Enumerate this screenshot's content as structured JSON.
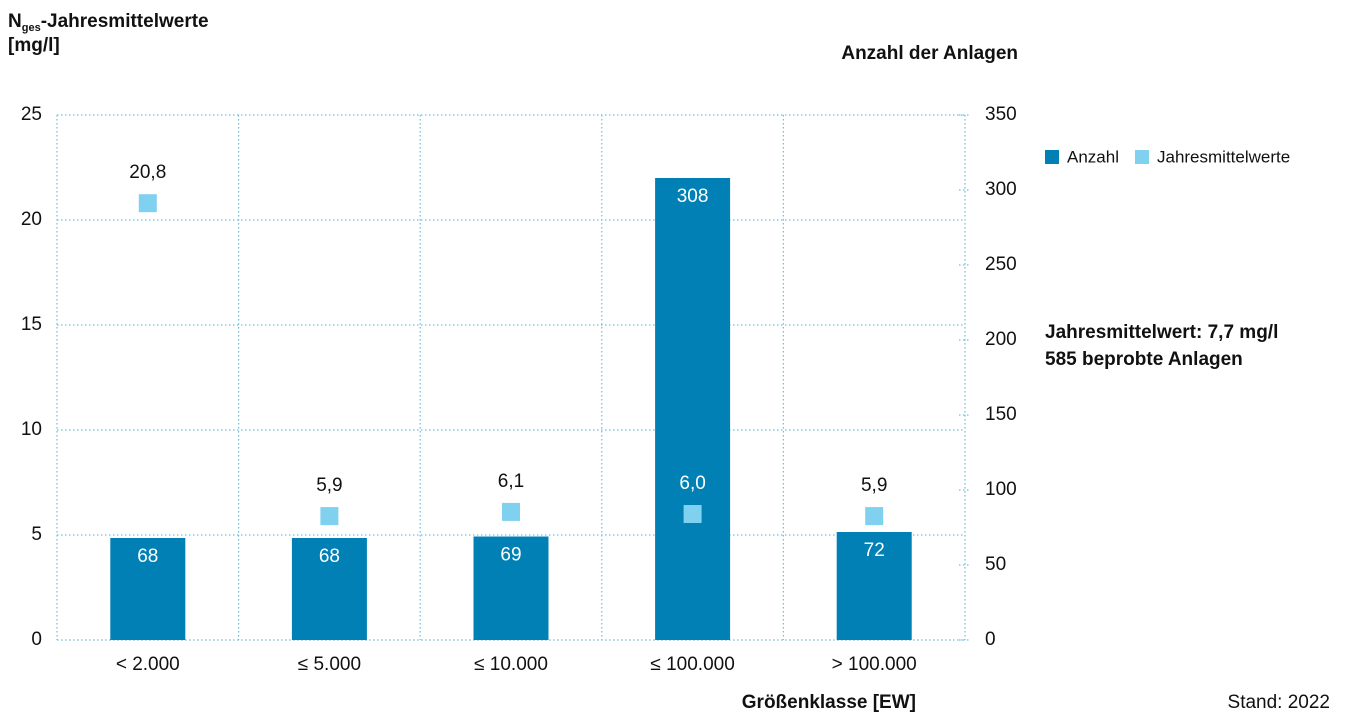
{
  "chart_data": {
    "type": "bar",
    "ylabel": {
      "main": "N",
      "sub": "ges",
      "rest": "-Jahresmittelwerte",
      "unit": "[mg/l]"
    },
    "y2label": "Anzahl der Anlagen",
    "xlabel": "Größenklasse [EW]",
    "annotations": [
      "Jahresmittelwert: 7,7 mg/l",
      "585 beprobte Anlagen"
    ],
    "source": "Stand: 2022",
    "categories": [
      "< 2.000",
      "≤ 5.000",
      "≤ 10.000",
      "≤ 100.000",
      "> 100.000"
    ],
    "series": [
      {
        "name": "Anzahl",
        "type": "bar",
        "color": "#0080b4",
        "axis": "y2",
        "values": [
          68,
          68,
          69,
          308,
          72
        ]
      },
      {
        "name": "Jahresmittelwerte",
        "type": "scatter",
        "color": "#80d0f0",
        "axis": "y",
        "values": [
          20.8,
          5.9,
          6.1,
          6.0,
          5.9
        ],
        "value_labels": [
          "20,8",
          "5,9",
          "6,1",
          "6,0",
          "5,9"
        ]
      }
    ],
    "ylim": [
      0,
      25
    ],
    "yticks": [
      0,
      5,
      10,
      15,
      20,
      25
    ],
    "y2lim": [
      0,
      350
    ],
    "y2ticks": [
      0,
      50,
      100,
      150,
      200,
      250,
      300,
      350
    ],
    "grid": true,
    "legend": "top-right"
  }
}
